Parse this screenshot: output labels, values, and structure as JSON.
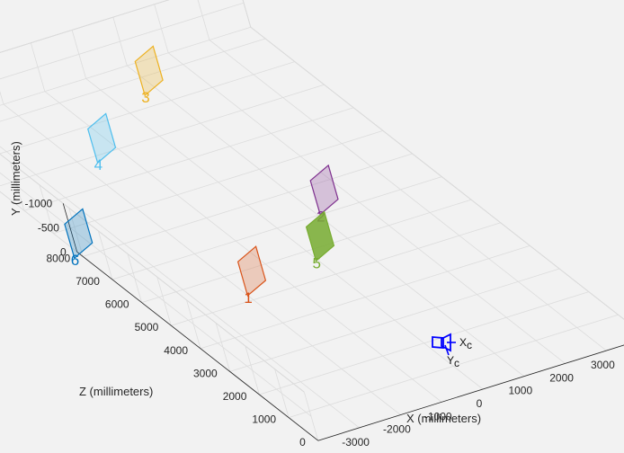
{
  "chart_data": {
    "type": "scatter3d",
    "title": "",
    "xlabel": "X (millimeters)",
    "ylabel": "Y (millimeters)",
    "zlabel": "Z (millimeters)",
    "xlim": [
      -4000,
      4000
    ],
    "ylim": [
      -1000,
      0
    ],
    "zlim": [
      0,
      8000
    ],
    "x_ticks": [
      "-3000",
      "-2000",
      "-1000",
      "0",
      "1000",
      "2000",
      "3000"
    ],
    "y_ticks": [
      "-1000",
      "-500",
      "0"
    ],
    "z_ticks": [
      "0",
      "1000",
      "2000",
      "3000",
      "4000",
      "5000",
      "6000",
      "7000",
      "8000"
    ],
    "y_direction": "reversed",
    "grid": true,
    "camera": {
      "position": [
        0,
        0,
        0
      ],
      "axis_labels": [
        "X",
        "Y"
      ],
      "axis_subscript": "c",
      "color": "#0000ff"
    },
    "boards": [
      {
        "label": "1",
        "x": -1600,
        "y": -250,
        "z": 5500,
        "color": "#d95319"
      },
      {
        "label": "2",
        "x": 1500,
        "y": -200,
        "z": 7400,
        "color": "#7e2f8e"
      },
      {
        "label": "3",
        "x": 1100,
        "y": -200,
        "z": 12800,
        "color": "#edb120"
      },
      {
        "label": "4",
        "x": -1300,
        "y": -300,
        "z": 11000,
        "color": "#4dbeee"
      },
      {
        "label": "5",
        "x": 400,
        "y": -200,
        "z": 6000,
        "color": "#77ac30"
      },
      {
        "label": "6",
        "x": -3900,
        "y": -400,
        "z": 8100,
        "color": "#0072bd"
      }
    ]
  }
}
